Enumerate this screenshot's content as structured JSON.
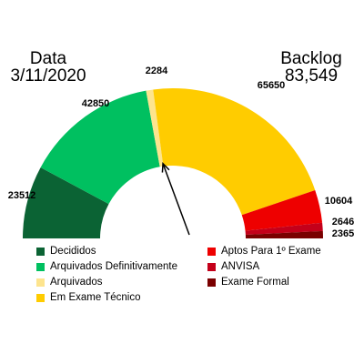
{
  "header": {
    "left_label": "Data",
    "left_value": "3/11/2020",
    "right_label": "Backlog",
    "right_value": "83,549"
  },
  "chart_data": {
    "type": "pie",
    "subtype": "semicircle-donut-gauge",
    "segments": [
      {
        "name": "Decididos",
        "value": 23512,
        "label": "23512",
        "color": "#0b6334"
      },
      {
        "name": "Arquivados Definitivamente",
        "value": 42850,
        "label": "42850",
        "color": "#00c060"
      },
      {
        "name": "Arquivados",
        "value": 2284,
        "label": "2284",
        "color": "#fde48e"
      },
      {
        "name": "Em Exame Técnico",
        "value": 65650,
        "label": "65650",
        "color": "#ffcc00"
      },
      {
        "name": "Aptos Para 1º Exame",
        "value": 10604,
        "label": "10604",
        "color": "#ee0000"
      },
      {
        "name": "ANVISA",
        "value": 2646,
        "label": "2646",
        "color": "#c4001a"
      },
      {
        "name": "Exame Formal",
        "value": 2365,
        "label": "2365",
        "color": "#7a0000"
      }
    ],
    "needle_after_segment": "Arquivados",
    "legend_columns": [
      [
        "Decididos",
        "Arquivados Definitivamente",
        "Arquivados",
        "Em Exame Técnico"
      ],
      [
        "Aptos Para 1º Exame",
        "ANVISA",
        "Exame Formal"
      ]
    ]
  }
}
